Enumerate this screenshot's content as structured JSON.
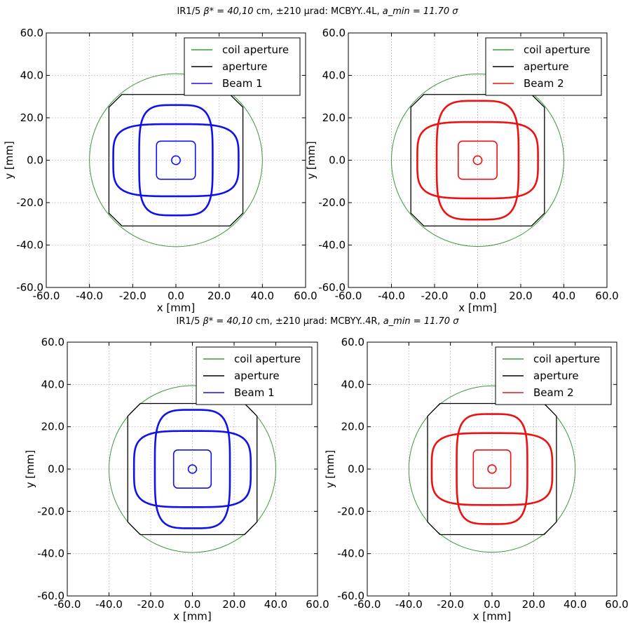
{
  "colors": {
    "coil": "#3a9a3a",
    "aperture": "#000000",
    "beam1": "#1111ee",
    "beam2": "#ee1111",
    "grid": "#b0b0b0"
  },
  "rows": [
    {
      "title_prefix": "IR1/5",
      "title_beta": "β* = 40,10",
      "title_mid": "cm,",
      "title_pm": "±210",
      "title_urad": "μrad: MCBYY..4L,",
      "title_amin": "a_min = 11.70",
      "title_sigma": "σ"
    },
    {
      "title_prefix": "IR1/5",
      "title_beta": "β* = 40,10",
      "title_mid": "cm,",
      "title_pm": "±210",
      "title_urad": "μrad: MCBYY..4R,",
      "title_amin": "a_min = 11.70",
      "title_sigma": "σ"
    }
  ],
  "chart_data": [
    {
      "type": "line",
      "panel": "top-left",
      "xlabel": "x [mm]",
      "ylabel": "y [mm]",
      "xlim": [
        -60,
        60
      ],
      "ylim": [
        -60,
        60
      ],
      "xticks": [
        "-60.0",
        "-40.0",
        "-20.0",
        "0.0",
        "20.0",
        "40.0",
        "60.0"
      ],
      "yticks": [
        "-60.0",
        "-40.0",
        "-20.0",
        "0.0",
        "20.0",
        "40.0",
        "60.0"
      ],
      "grid": true,
      "legend": "top-right",
      "series": [
        {
          "name": "coil aperture",
          "shape": "circle",
          "center": [
            0,
            0
          ],
          "radius": 40
        },
        {
          "name": "aperture",
          "shape": "octagon",
          "half_width": 31,
          "half_height": 31,
          "corner_cut": 25
        },
        {
          "name": "Beam 1",
          "shape": "beam-envelopes",
          "rings": [
            {
              "kind": "circle",
              "center": [
                0,
                0
              ],
              "radius": 2
            },
            {
              "kind": "rounded-rect",
              "hw": 9,
              "hh": 9,
              "r": 2
            },
            {
              "kind": "superellipse",
              "hw": 29,
              "hh": 17,
              "n": 4
            },
            {
              "kind": "superellipse",
              "hw": 17,
              "hh": 26,
              "n": 4
            }
          ]
        }
      ]
    },
    {
      "type": "line",
      "panel": "top-right",
      "xlabel": "x [mm]",
      "ylabel": "y [mm]",
      "xlim": [
        -60,
        60
      ],
      "ylim": [
        -60,
        60
      ],
      "xticks": [
        "-60.0",
        "-40.0",
        "-20.0",
        "0.0",
        "20.0",
        "40.0",
        "60.0"
      ],
      "yticks": [
        "-60.0",
        "-40.0",
        "-20.0",
        "0.0",
        "20.0",
        "40.0",
        "60.0"
      ],
      "grid": true,
      "legend": "top-right",
      "series": [
        {
          "name": "coil aperture",
          "shape": "circle",
          "center": [
            0,
            0
          ],
          "radius": 40
        },
        {
          "name": "aperture",
          "shape": "octagon",
          "half_width": 31,
          "half_height": 31,
          "corner_cut": 25
        },
        {
          "name": "Beam 2",
          "shape": "beam-envelopes",
          "rings": [
            {
              "kind": "circle",
              "center": [
                0,
                0
              ],
              "radius": 2
            },
            {
              "kind": "rounded-rect",
              "hw": 9,
              "hh": 9,
              "r": 2
            },
            {
              "kind": "superellipse",
              "hw": 28,
              "hh": 18,
              "n": 4
            },
            {
              "kind": "superellipse",
              "hw": 19,
              "hh": 28,
              "n": 4
            }
          ]
        }
      ]
    },
    {
      "type": "line",
      "panel": "bottom-left",
      "xlabel": "x [mm]",
      "ylabel": "y [mm]",
      "xlim": [
        -60,
        60
      ],
      "ylim": [
        -60,
        60
      ],
      "xticks": [
        "-60.0",
        "-40.0",
        "-20.0",
        "0.0",
        "20.0",
        "40.0",
        "60.0"
      ],
      "yticks": [
        "-60.0",
        "-40.0",
        "-20.0",
        "0.0",
        "20.0",
        "40.0",
        "60.0"
      ],
      "grid": true,
      "legend": "top-right",
      "series": [
        {
          "name": "coil aperture",
          "shape": "circle",
          "center": [
            0,
            0
          ],
          "radius": 40
        },
        {
          "name": "aperture",
          "shape": "octagon",
          "half_width": 31,
          "half_height": 31,
          "corner_cut": 25
        },
        {
          "name": "Beam 1",
          "shape": "beam-envelopes",
          "rings": [
            {
              "kind": "circle",
              "center": [
                0,
                0
              ],
              "radius": 2
            },
            {
              "kind": "rounded-rect",
              "hw": 9,
              "hh": 9,
              "r": 2
            },
            {
              "kind": "superellipse",
              "hw": 28,
              "hh": 18,
              "n": 4
            },
            {
              "kind": "superellipse",
              "hw": 18,
              "hh": 28,
              "n": 4
            }
          ]
        }
      ]
    },
    {
      "type": "line",
      "panel": "bottom-right",
      "xlabel": "x [mm]",
      "ylabel": "y [mm]",
      "xlim": [
        -60,
        60
      ],
      "ylim": [
        -60,
        60
      ],
      "xticks": [
        "-60.0",
        "-40.0",
        "-20.0",
        "0.0",
        "20.0",
        "40.0",
        "60.0"
      ],
      "yticks": [
        "-60.0",
        "-40.0",
        "-20.0",
        "0.0",
        "20.0",
        "40.0",
        "60.0"
      ],
      "grid": true,
      "legend": "top-right",
      "series": [
        {
          "name": "coil aperture",
          "shape": "circle",
          "center": [
            0,
            0
          ],
          "radius": 40
        },
        {
          "name": "aperture",
          "shape": "octagon",
          "half_width": 31,
          "half_height": 31,
          "corner_cut": 25
        },
        {
          "name": "Beam 2",
          "shape": "beam-envelopes",
          "rings": [
            {
              "kind": "circle",
              "center": [
                0,
                0
              ],
              "radius": 2
            },
            {
              "kind": "rounded-rect",
              "hw": 9,
              "hh": 9,
              "r": 2
            },
            {
              "kind": "superellipse",
              "hw": 29,
              "hh": 17,
              "n": 4
            },
            {
              "kind": "superellipse",
              "hw": 17,
              "hh": 26,
              "n": 4
            }
          ]
        }
      ]
    }
  ]
}
